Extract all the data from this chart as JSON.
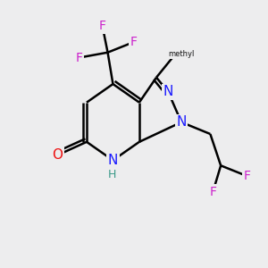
{
  "bg_color": "#ededee",
  "bond_color": "#000000",
  "bond_width": 1.8,
  "atom_colors": {
    "N": "#1a1aff",
    "O": "#ee1111",
    "F": "#cc22cc",
    "H": "#3a9988"
  },
  "font_size_N": 11,
  "font_size_O": 11,
  "font_size_F": 10,
  "font_size_H": 9,
  "font_size_me": 9
}
